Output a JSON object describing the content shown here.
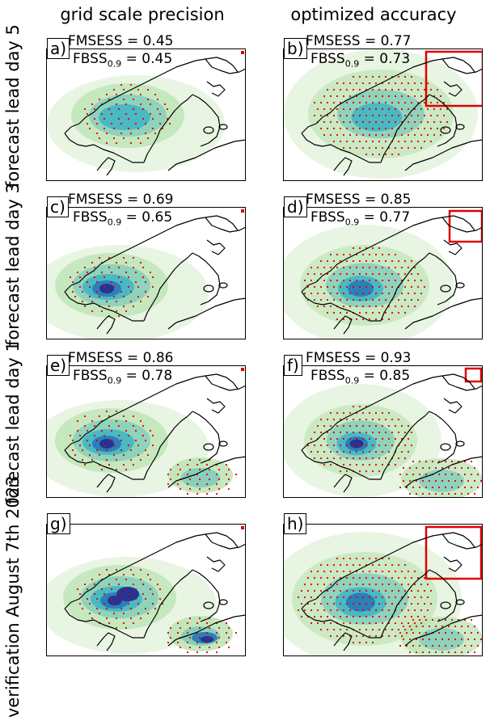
{
  "columns": {
    "left": "grid scale precision",
    "right": "optimized accuracy"
  },
  "rows": [
    "forecast lead day 5",
    "forecast lead day 3",
    "forecast lead day 1",
    "verification August 7th 2023"
  ],
  "panels": [
    {
      "label": "a)",
      "fmsess": "FMSESS = 0.45",
      "fbss_prefix": "FBSS",
      "fbss_sub": "0.9",
      "fbss_value": " = 0.45"
    },
    {
      "label": "b)",
      "fmsess": "FMSESS = 0.77",
      "fbss_prefix": "FBSS",
      "fbss_sub": "0.9",
      "fbss_value": " = 0.73"
    },
    {
      "label": "c)",
      "fmsess": "FMSESS = 0.69",
      "fbss_prefix": "FBSS",
      "fbss_sub": "0.9",
      "fbss_value": " = 0.65"
    },
    {
      "label": "d)",
      "fmsess": "FMSESS = 0.85",
      "fbss_prefix": "FBSS",
      "fbss_sub": "0.9",
      "fbss_value": " = 0.77"
    },
    {
      "label": "e)",
      "fmsess": "FMSESS = 0.86",
      "fbss_prefix": "FBSS",
      "fbss_sub": "0.9",
      "fbss_value": " = 0.78"
    },
    {
      "label": "f)",
      "fmsess": "FMSESS = 0.93",
      "fbss_prefix": "FBSS",
      "fbss_sub": "0.9",
      "fbss_value": " = 0.85"
    },
    {
      "label": "g)"
    },
    {
      "label": "h)"
    }
  ],
  "colors": {
    "light_green": "#e6f4df",
    "mid_green": "#b7e2b1",
    "teal": "#7fcdbb",
    "cyan": "#41b6c4",
    "blue": "#2c7fb8",
    "navy": "#253494",
    "stipple": "#e00000",
    "box": "#e00000"
  }
}
